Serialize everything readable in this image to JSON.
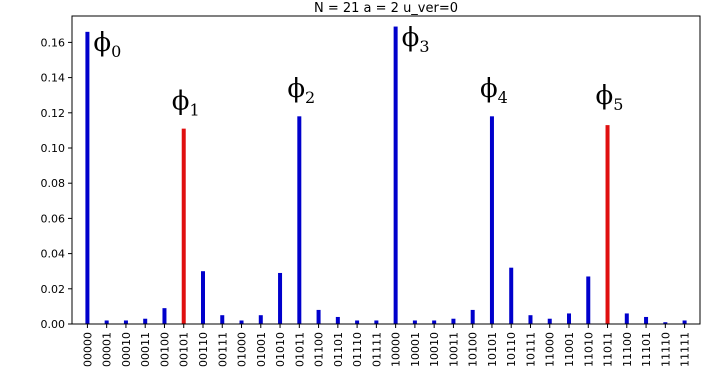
{
  "chart_data": {
    "type": "bar",
    "title": "N = 21 a = 2 u_ver=0",
    "xlabel": "",
    "ylabel": "",
    "ylim": [
      0,
      0.175
    ],
    "yticks": [
      "0.00",
      "0.02",
      "0.04",
      "0.06",
      "0.08",
      "0.10",
      "0.12",
      "0.14",
      "0.16"
    ],
    "grid": false,
    "legend": "none",
    "colors": {
      "default": "#0000cc",
      "highlight": "#e01010"
    },
    "categories": [
      "00000",
      "00001",
      "00010",
      "00011",
      "00100",
      "00101",
      "00110",
      "00111",
      "01000",
      "01001",
      "01010",
      "01011",
      "01100",
      "01101",
      "01110",
      "01111",
      "10000",
      "10001",
      "10010",
      "10011",
      "10100",
      "10101",
      "10110",
      "10111",
      "11000",
      "11001",
      "11010",
      "11011",
      "11100",
      "11101",
      "11110",
      "11111"
    ],
    "values": [
      0.166,
      0.002,
      0.002,
      0.003,
      0.009,
      0.111,
      0.03,
      0.005,
      0.002,
      0.005,
      0.029,
      0.118,
      0.008,
      0.004,
      0.002,
      0.002,
      0.169,
      0.002,
      0.002,
      0.003,
      0.008,
      0.118,
      0.032,
      0.005,
      0.003,
      0.006,
      0.027,
      0.113,
      0.006,
      0.004,
      0.001,
      0.002
    ],
    "highlight_indices": [
      5,
      27
    ],
    "annotations": [
      {
        "symbol": "ϕ",
        "sub": "0",
        "x": 0,
        "y": 0.155
      },
      {
        "symbol": "ϕ",
        "sub": "1",
        "x": 5,
        "y": 0.122
      },
      {
        "symbol": "ϕ",
        "sub": "2",
        "x": 11,
        "y": 0.129
      },
      {
        "symbol": "ϕ",
        "sub": "3",
        "x": 16,
        "y": 0.158
      },
      {
        "symbol": "ϕ",
        "sub": "4",
        "x": 21,
        "y": 0.129
      },
      {
        "symbol": "ϕ",
        "sub": "5",
        "x": 27,
        "y": 0.125
      }
    ]
  }
}
